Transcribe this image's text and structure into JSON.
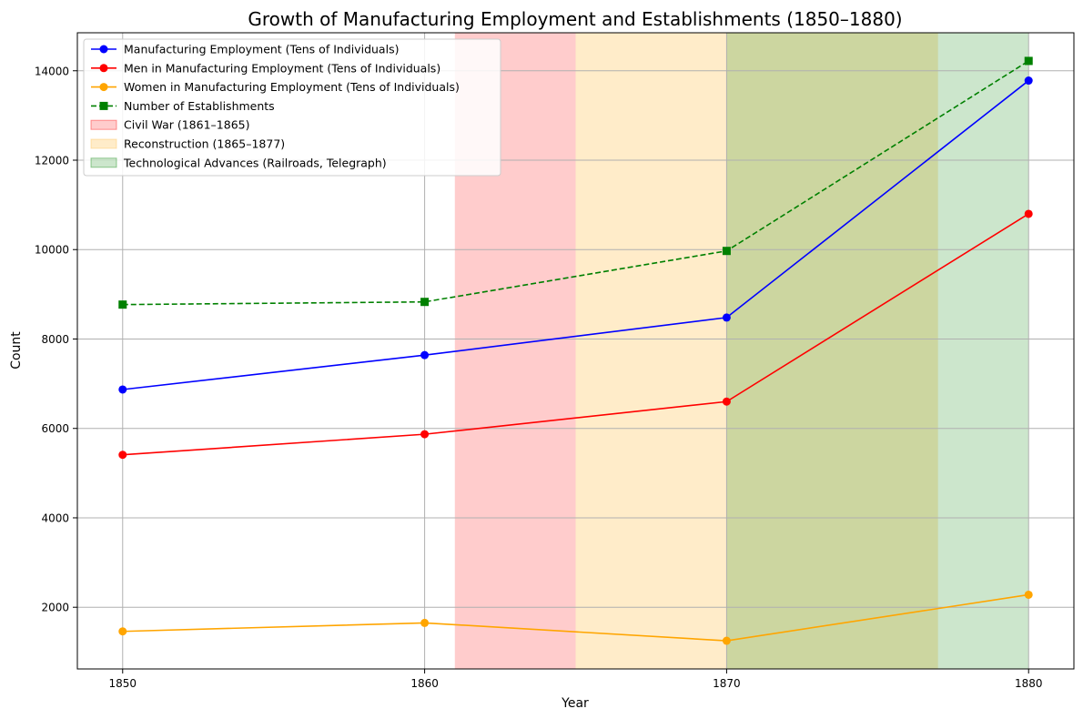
{
  "chart_data": {
    "type": "line",
    "title": "Growth of Manufacturing Employment and Establishments (1850–1880)",
    "xlabel": "Year",
    "ylabel": "Count",
    "x": [
      1850,
      1860,
      1870,
      1880
    ],
    "xlim": [
      1848.5,
      1881.5
    ],
    "ylim": [
      620,
      14850
    ],
    "xticks": [
      1850,
      1860,
      1870,
      1880
    ],
    "yticks": [
      2000,
      4000,
      6000,
      8000,
      10000,
      12000,
      14000
    ],
    "grid": true,
    "legend_position": "top-left",
    "series": [
      {
        "name": "Manufacturing Employment (Tens of Individuals)",
        "values": [
          6870,
          7640,
          8480,
          13780
        ],
        "color": "#0000ff",
        "style": "solid",
        "marker": "circle"
      },
      {
        "name": "Men in Manufacturing Employment (Tens of Individuals)",
        "values": [
          5410,
          5870,
          6600,
          10800
        ],
        "color": "#ff0000",
        "style": "solid",
        "marker": "circle"
      },
      {
        "name": "Women in Manufacturing Employment (Tens of Individuals)",
        "values": [
          1460,
          1650,
          1250,
          2280
        ],
        "color": "#ffa500",
        "style": "solid",
        "marker": "circle"
      },
      {
        "name": "Number of Establishments",
        "values": [
          8770,
          8830,
          9970,
          14220
        ],
        "color": "#008000",
        "style": "dashed",
        "marker": "square"
      }
    ],
    "spans": [
      {
        "name": "Civil War (1861–1865)",
        "start": 1861,
        "end": 1865,
        "color": "#ff0000",
        "opacity": 0.2
      },
      {
        "name": "Reconstruction (1865–1877)",
        "start": 1865,
        "end": 1877,
        "color": "#ffc04d",
        "opacity": 0.3
      },
      {
        "name": "Technological Advances (Railroads, Telegraph)",
        "start": 1870,
        "end": 1880,
        "color": "#008000",
        "opacity": 0.2
      }
    ]
  }
}
